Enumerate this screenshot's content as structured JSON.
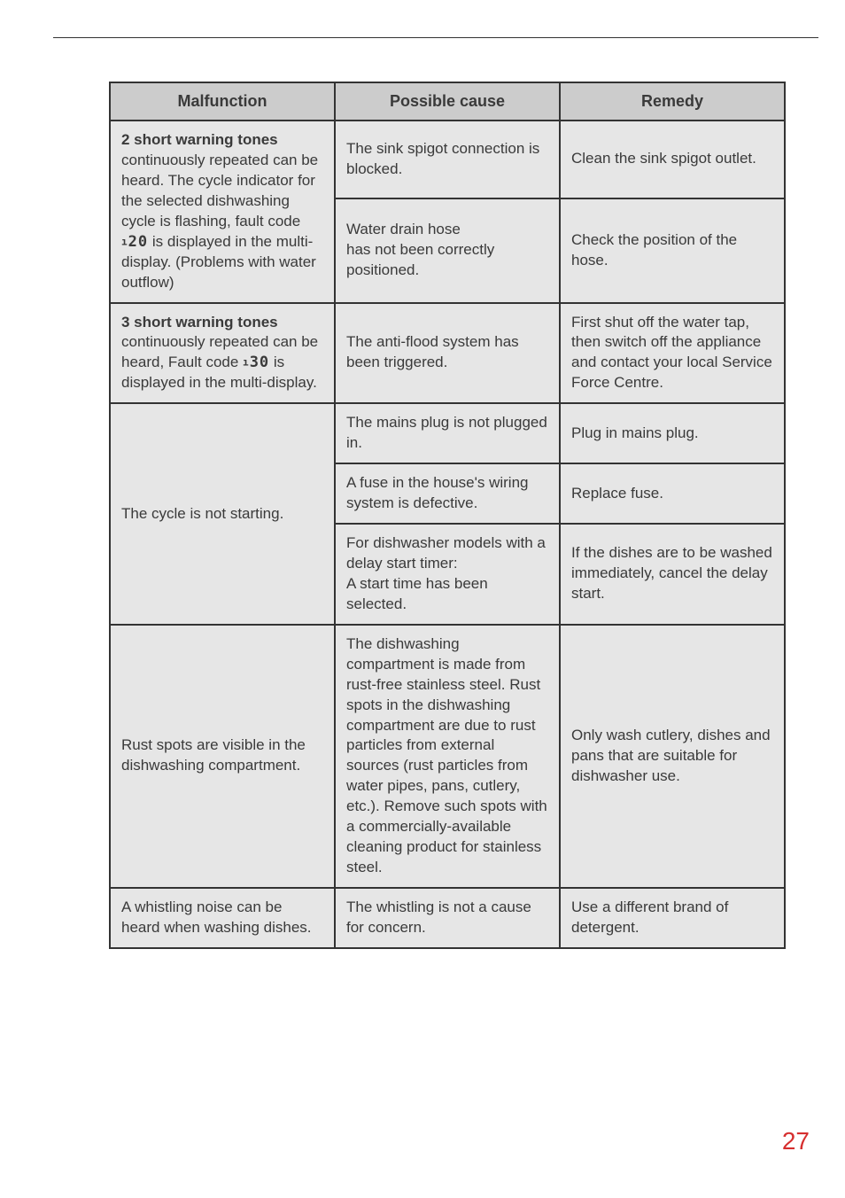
{
  "table": {
    "headers": {
      "malfunction": "Malfunction",
      "cause": "Possible cause",
      "remedy": "Remedy"
    },
    "colors": {
      "header_bg": "#cccccc",
      "cell_bg": "#e6e6e6",
      "border": "#333333",
      "text": "#3a3a3a",
      "page_number": "#d62f2f"
    },
    "rows": [
      {
        "malfunction_strong": "2 short warning tones",
        "malfunction_rest": " continuously repeated can be heard.\nThe cycle indicator for the selected dishwashing cycle is flashing,\nfault code ",
        "malfunction_code": "ı20",
        "malfunction_tail": " is displayed in the multi-display. (Problems with water outflow)",
        "cause_a": "The sink spigot connection is blocked.",
        "remedy_a": "Clean the sink spigot outlet.",
        "cause_b": "Water drain hose\nhas not been correctly positioned.",
        "remedy_b": "Check the position of the hose."
      },
      {
        "malfunction_strong": "3 short warning tones",
        "malfunction_rest": " continuously repeated can be heard,\nFault code ",
        "malfunction_code": "ı30",
        "malfunction_tail": " is displayed in the multi-display.",
        "cause": "The anti-flood system has been triggered.",
        "remedy": "First shut off the water tap, then switch off the appliance and contact your local Service Force Centre."
      },
      {
        "malfunction": "The cycle is not starting.",
        "cause_a": "The mains plug is not plugged in.",
        "remedy_a": "Plug in mains plug.",
        "cause_b": "A fuse in the house's wiring system is defective.",
        "remedy_b": "Replace fuse.",
        "cause_c": "For dishwasher models with a delay start timer:\nA start time has been selected.",
        "remedy_c": "If the dishes are to be washed immediately, cancel the delay start."
      },
      {
        "malfunction": "Rust spots are visible in the dishwashing compartment.",
        "cause": "The dishwashing compartment is made from rust-free stainless steel. Rust spots in the dishwashing compartment are due to rust particles from external sources (rust particles from water pipes, pans, cutlery, etc.). Remove such spots with a commercially-available cleaning product for stainless steel.",
        "remedy": "Only wash cutlery, dishes and pans that are suitable for dishwasher use."
      },
      {
        "malfunction": "A whistling noise can be heard when washing dishes.",
        "cause": "The whistling is not a cause for concern.",
        "remedy": "Use a different brand of detergent."
      }
    ]
  },
  "page_number": "27"
}
